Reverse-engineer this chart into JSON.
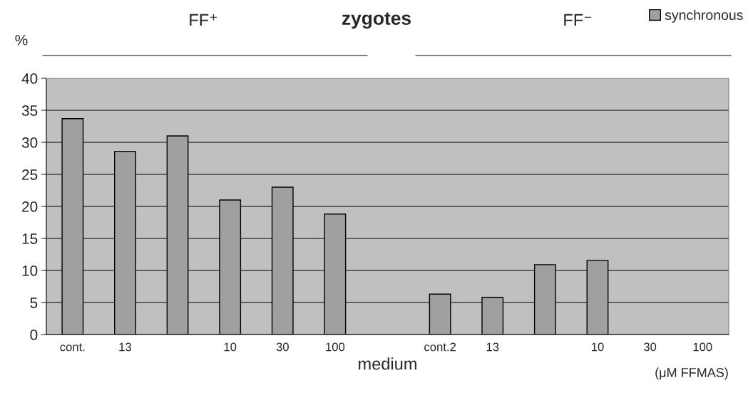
{
  "chart_data": {
    "type": "bar",
    "title": "zygotes",
    "xlabel": "medium",
    "categories": [
      "cont.",
      "13",
      null,
      "10",
      "30",
      "100",
      null,
      "cont.2",
      "13",
      null,
      "10",
      "30",
      "100"
    ],
    "series": [
      {
        "name": "synchronous",
        "color": "#a0a0a0",
        "values": [
          33.7,
          28.6,
          31.0,
          21.0,
          23.0,
          18.8,
          null,
          6.3,
          5.8,
          10.9,
          11.6,
          null,
          null
        ]
      }
    ],
    "ylim": [
      0,
      40
    ],
    "yticks": [
      0,
      5,
      10,
      15,
      20,
      25,
      30,
      35,
      40
    ],
    "grid": "y",
    "legend": "top right",
    "annotations": [
      "%",
      "FF⁺",
      "FF⁻",
      "(μM FFMAS)"
    ]
  }
}
